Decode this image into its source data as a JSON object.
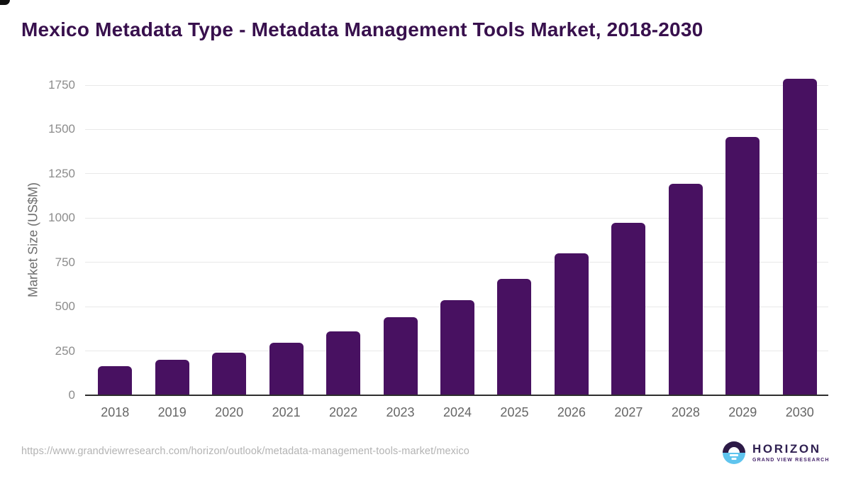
{
  "title": "Mexico Metadata Type - Metadata Management Tools Market, 2018-2030",
  "footer": {
    "source_url": "https://www.grandviewresearch.com/horizon/outlook/metadata-management-tools-market/mexico",
    "logo": {
      "name": "HORIZON",
      "subtitle": "GRAND VIEW RESEARCH"
    }
  },
  "colors": {
    "bar": "#481161",
    "title_text": "#38104d",
    "axis_line": "#2e2e2e",
    "gridline": "#e8e8e8",
    "y_tick_text": "#8c8c8c",
    "x_tick_text": "#666666",
    "url_text": "#b3b3b3",
    "logo_dark_half": "#2d1a47",
    "logo_blue_half": "#5fc4ee",
    "logo_text": "#2f2051"
  },
  "chart_data": {
    "type": "bar",
    "title": "Mexico Metadata Type - Metadata Management Tools Market, 2018-2030",
    "categories": [
      "2018",
      "2019",
      "2020",
      "2021",
      "2022",
      "2023",
      "2024",
      "2025",
      "2026",
      "2027",
      "2028",
      "2029",
      "2030"
    ],
    "values": [
      166,
      202,
      242,
      297,
      362,
      441,
      536,
      658,
      802,
      975,
      1195,
      1459,
      1788
    ],
    "xlabel": "",
    "ylabel": "Market Size (US$M)",
    "ylim": [
      0,
      1790
    ],
    "yticks": [
      0,
      250,
      500,
      750,
      1000,
      1250,
      1500,
      1750
    ],
    "grid": true,
    "legend": false,
    "bar_color": "#481161"
  }
}
